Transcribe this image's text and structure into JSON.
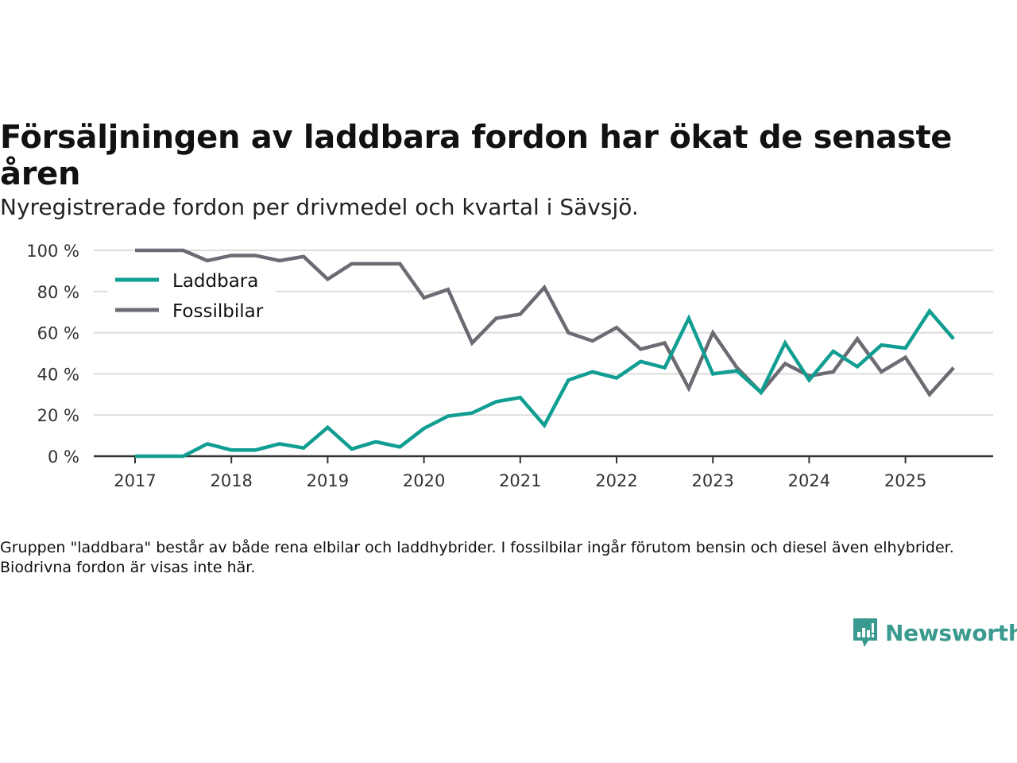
{
  "title": "Försäljningen av laddbara fordon har ökat de senaste åren",
  "subtitle": "Nyregistrerade fordon per drivmedel och kvartal i Sävsjö.",
  "footnote": "Gruppen \"laddbara\" består av både rena elbilar och laddhybrider. I fossilbilar ingår förutom bensin och diesel även elhybrider. Biodrivna fordon är visas inte här.",
  "logo": {
    "text": "Newsworthy",
    "icon": "bar-chart-speech-bubble-icon",
    "color": "#3a9a8f"
  },
  "chart_data": {
    "type": "line",
    "title": "Försäljningen av laddbara fordon har ökat de senaste åren",
    "subtitle": "Nyregistrerade fordon per drivmedel och kvartal i Sävsjö.",
    "xlabel": "",
    "ylabel": "",
    "ylim": [
      0,
      100
    ],
    "yticks": [
      0,
      20,
      40,
      60,
      80,
      100
    ],
    "ytick_labels": [
      "0 %",
      "20 %",
      "40 %",
      "60 %",
      "80 %",
      "100 %"
    ],
    "xticks": [
      "2017",
      "2018",
      "2019",
      "2020",
      "2021",
      "2022",
      "2023",
      "2024",
      "2025"
    ],
    "x_start_year": 2017,
    "x_unit": "quarter",
    "grid": true,
    "legend": "top-left",
    "x": [
      "2017Q1",
      "2017Q2",
      "2017Q3",
      "2017Q4",
      "2018Q1",
      "2018Q2",
      "2018Q3",
      "2018Q4",
      "2019Q1",
      "2019Q2",
      "2019Q3",
      "2019Q4",
      "2020Q1",
      "2020Q2",
      "2020Q3",
      "2020Q4",
      "2021Q1",
      "2021Q2",
      "2021Q3",
      "2021Q4",
      "2022Q1",
      "2022Q2",
      "2022Q3",
      "2022Q4",
      "2023Q1",
      "2023Q2",
      "2023Q3",
      "2023Q4",
      "2024Q1",
      "2024Q2",
      "2024Q3",
      "2024Q4",
      "2025Q1",
      "2025Q2",
      "2025Q3"
    ],
    "series": [
      {
        "name": "Laddbara",
        "color": "#119e92",
        "values": [
          0,
          0,
          0,
          6,
          3,
          3,
          6,
          4,
          14,
          3.5,
          7,
          4.5,
          13.5,
          19.5,
          21,
          26.5,
          28.5,
          15,
          37,
          41,
          38,
          46,
          43,
          67,
          40,
          41.5,
          31,
          55,
          37,
          51,
          43.5,
          54,
          52.5,
          70.5,
          57
        ]
      },
      {
        "name": "Fossilbilar",
        "color": "#6c6b73",
        "values": [
          100,
          100,
          100,
          95,
          97.5,
          97.5,
          95,
          97,
          86,
          93.5,
          93.5,
          93.5,
          77,
          81,
          55,
          67,
          69,
          82,
          60,
          56,
          62.5,
          52,
          55,
          33,
          60,
          43,
          31,
          45,
          39,
          41,
          57,
          41,
          48,
          30,
          43
        ]
      }
    ]
  }
}
